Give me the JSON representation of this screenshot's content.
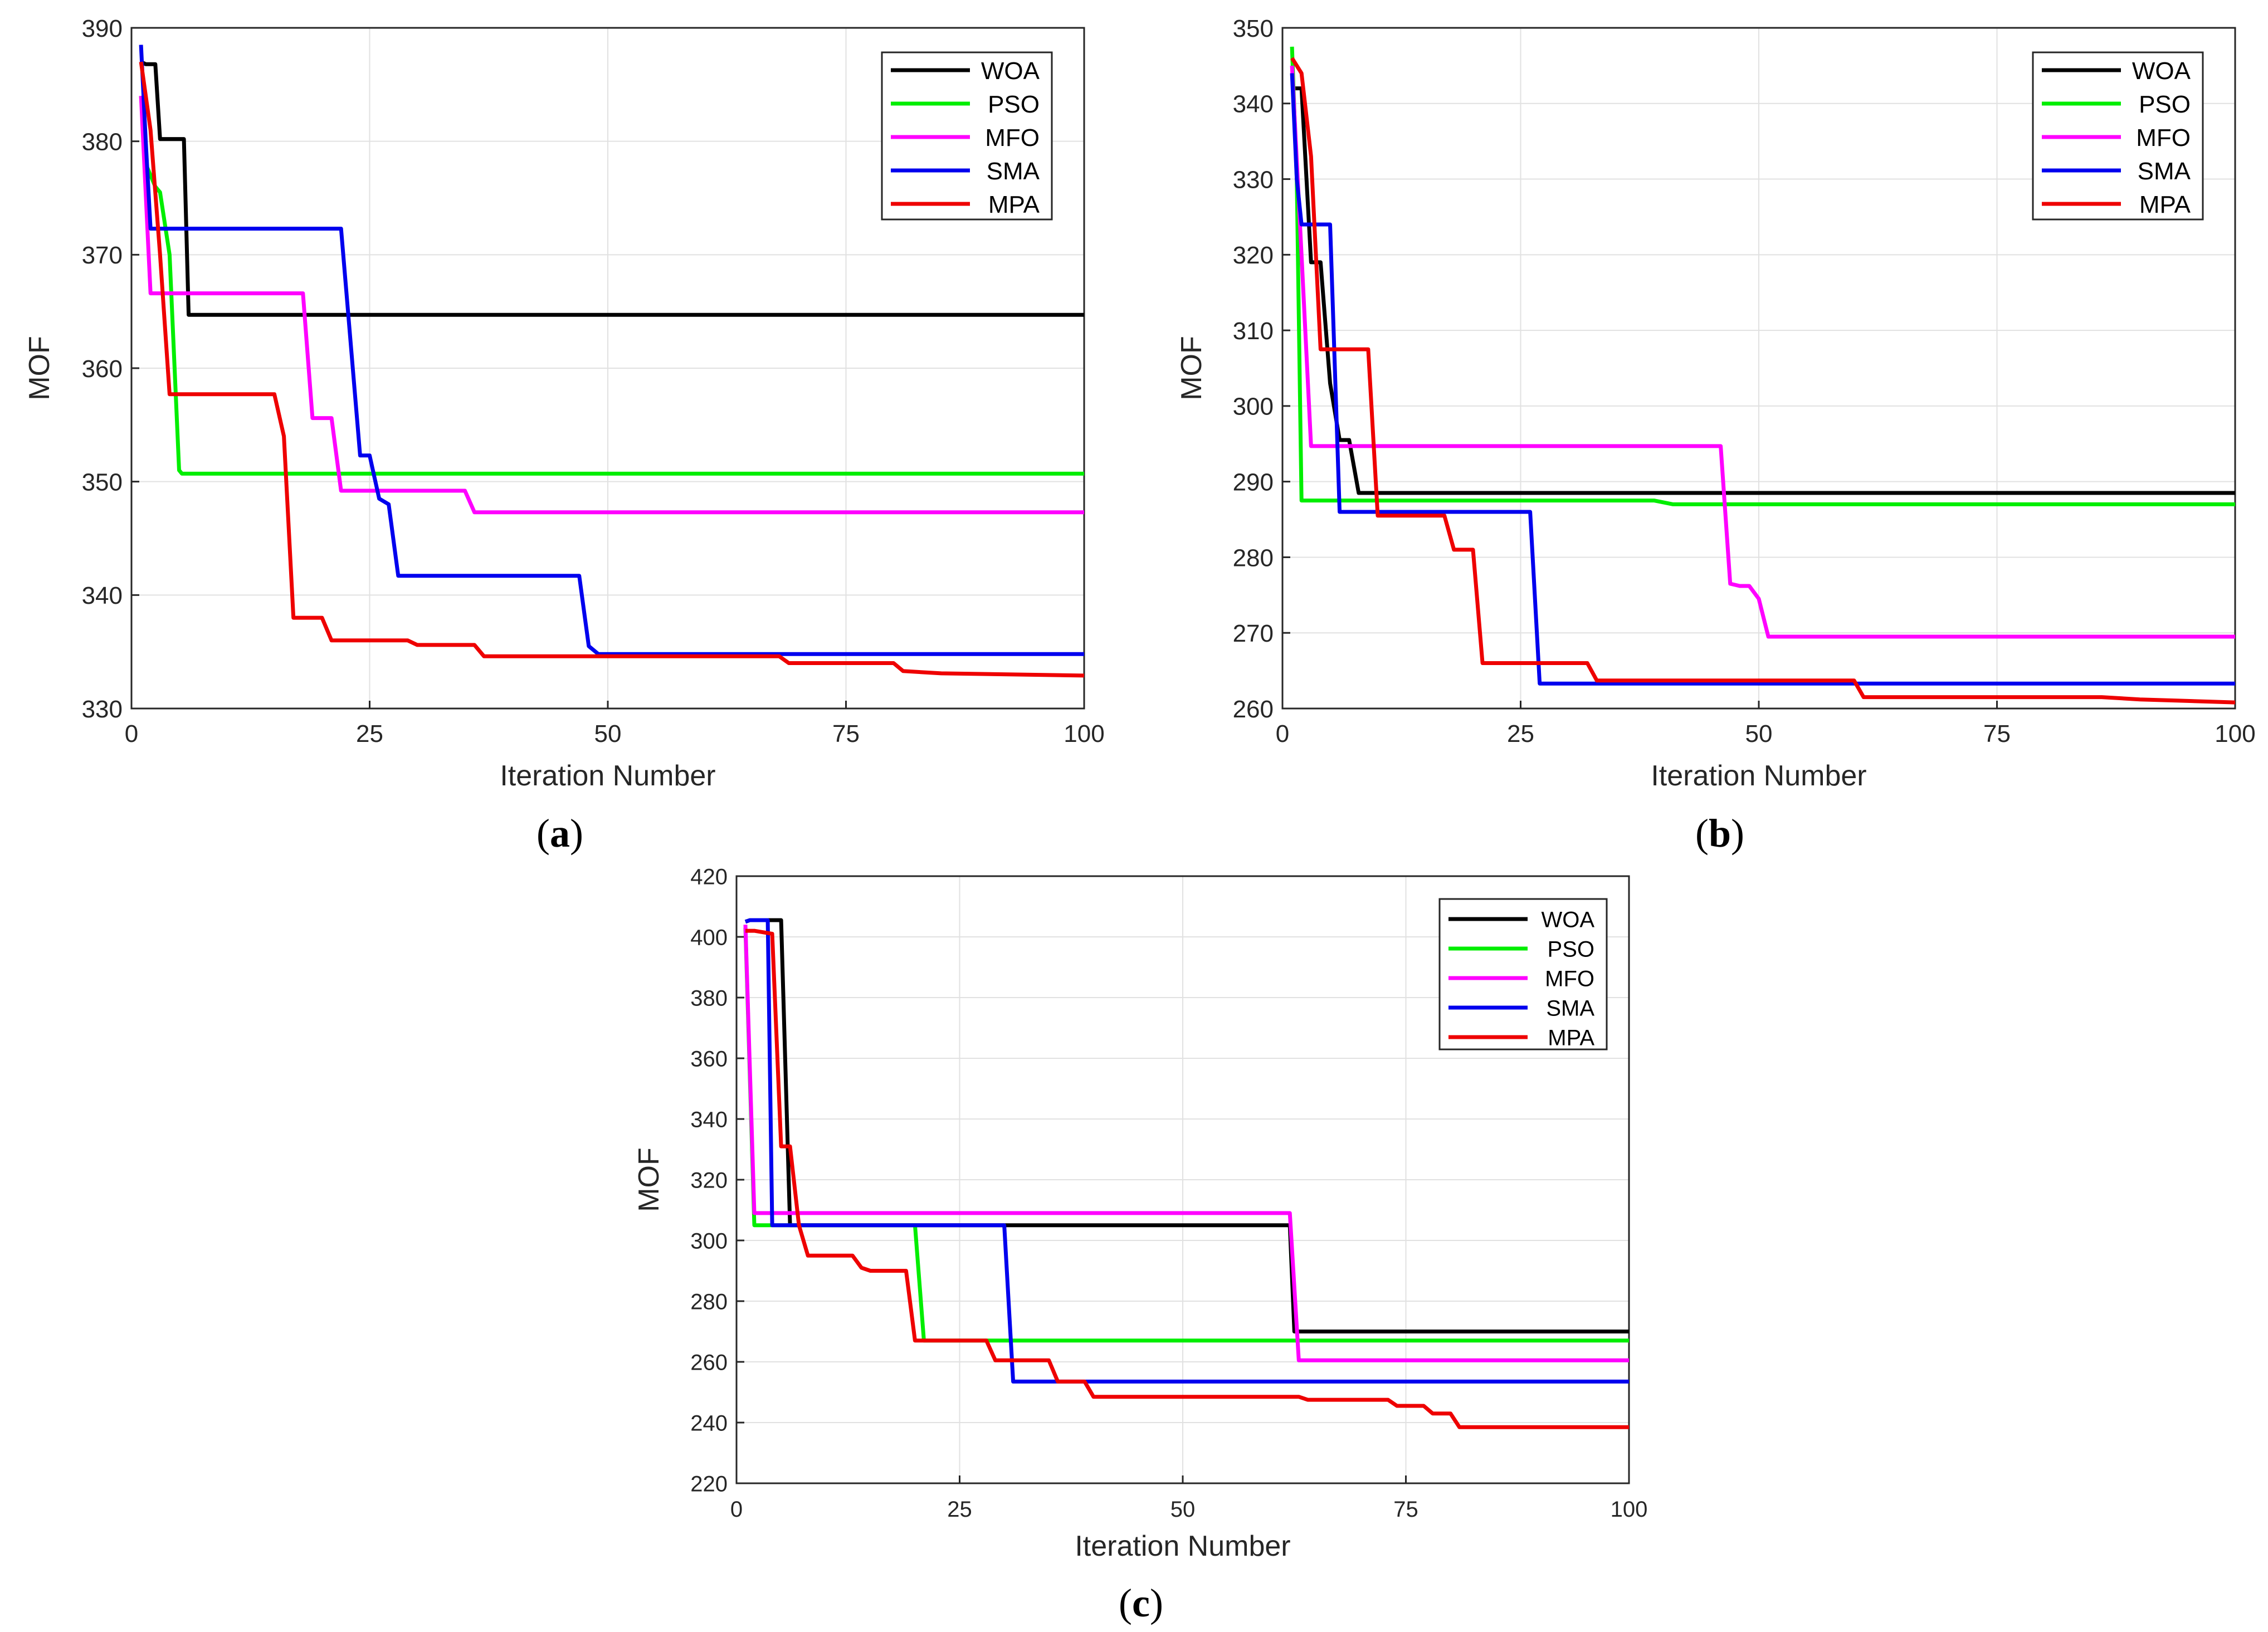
{
  "legend_order": [
    "WOA",
    "PSO",
    "MFO",
    "SMA",
    "MPA"
  ],
  "colors": {
    "WOA": "#000000",
    "PSO": "#00ee00",
    "MFO": "#ff00ff",
    "SMA": "#0000ee",
    "MPA": "#ee0000"
  },
  "chart_data": [
    {
      "type": "line",
      "panel": "a",
      "caption_letter": "a",
      "xlabel": "Iteration Number",
      "ylabel": "MOF",
      "xlim": [
        0,
        100
      ],
      "ylim": [
        330,
        390
      ],
      "xticks": [
        0,
        25,
        50,
        75,
        100
      ],
      "yticks": [
        330,
        340,
        350,
        360,
        370,
        380,
        390
      ],
      "grid": true,
      "legend_position": "top-right",
      "series": [
        {
          "name": "WOA",
          "x": [
            1,
            1.5,
            2.5,
            3,
            5,
            5.5,
            6,
            100
          ],
          "y": [
            387,
            386.8,
            386.8,
            380.2,
            380.2,
            380.2,
            364.7,
            364.7
          ]
        },
        {
          "name": "PSO",
          "x": [
            1,
            1.5,
            2.5,
            3,
            4,
            5,
            5.3,
            100
          ],
          "y": [
            384,
            378,
            376,
            375.5,
            370,
            351,
            350.7,
            350.7
          ]
        },
        {
          "name": "MFO",
          "x": [
            1,
            2,
            18,
            19,
            21,
            22,
            35,
            36,
            100
          ],
          "y": [
            384,
            366.6,
            366.6,
            355.6,
            355.6,
            349.2,
            349.2,
            347.3,
            347.3
          ]
        },
        {
          "name": "SMA",
          "x": [
            1,
            1.5,
            2,
            22,
            24,
            25,
            26,
            27,
            28,
            29,
            47,
            48,
            49,
            100
          ],
          "y": [
            388.5,
            380,
            372.3,
            372.3,
            352.3,
            352.3,
            348.5,
            348,
            341.7,
            341.7,
            341.7,
            335.5,
            334.8,
            334.8
          ]
        },
        {
          "name": "MPA",
          "x": [
            1,
            2,
            3,
            4,
            15,
            16,
            17,
            20,
            21,
            29,
            30,
            36,
            37,
            68,
            69,
            80,
            81,
            85,
            100
          ],
          "y": [
            387,
            381,
            370,
            357.7,
            357.7,
            354,
            338,
            338,
            336,
            336,
            335.6,
            335.6,
            334.6,
            334.6,
            334,
            334,
            333.3,
            333.1,
            332.9
          ]
        }
      ]
    },
    {
      "type": "line",
      "panel": "b",
      "caption_letter": "b",
      "xlabel": "Iteration Number",
      "ylabel": "MOF",
      "xlim": [
        0,
        100
      ],
      "ylim": [
        260,
        350
      ],
      "xticks": [
        0,
        25,
        50,
        75,
        100
      ],
      "yticks": [
        260,
        270,
        280,
        290,
        300,
        310,
        320,
        330,
        340,
        350
      ],
      "grid": true,
      "legend_position": "top-right",
      "series": [
        {
          "name": "WOA",
          "x": [
            1,
            1.5,
            2,
            3,
            4,
            5,
            6,
            7,
            8,
            9,
            100
          ],
          "y": [
            342,
            342,
            342,
            319,
            319,
            303,
            295.5,
            295.5,
            288.5,
            288.5,
            288.5
          ]
        },
        {
          "name": "PSO",
          "x": [
            1,
            1.5,
            2,
            39,
            41,
            100
          ],
          "y": [
            347.5,
            330,
            287.5,
            287.5,
            287,
            287
          ]
        },
        {
          "name": "MFO",
          "x": [
            1,
            2,
            3,
            46,
            47,
            48,
            49,
            50,
            51,
            100
          ],
          "y": [
            345,
            320,
            294.7,
            294.7,
            276.5,
            276.2,
            276.2,
            274.5,
            269.5,
            269.5
          ]
        },
        {
          "name": "SMA",
          "x": [
            1,
            1.5,
            2,
            5,
            6,
            26,
            27,
            100
          ],
          "y": [
            344,
            330,
            324,
            324,
            286,
            286,
            263.3,
            263.3
          ]
        },
        {
          "name": "MPA",
          "x": [
            1,
            2,
            3,
            4,
            9,
            10,
            17,
            18,
            20,
            21,
            32,
            33,
            60,
            61,
            86,
            90,
            95,
            100
          ],
          "y": [
            346,
            344,
            333,
            307.5,
            307.5,
            285.5,
            285.5,
            281,
            281,
            266,
            266,
            263.7,
            263.7,
            261.5,
            261.5,
            261.2,
            261,
            260.8
          ]
        }
      ]
    },
    {
      "type": "line",
      "panel": "c",
      "caption_letter": "c",
      "xlabel": "Iteration Number",
      "ylabel": "MOF",
      "xlim": [
        0,
        100
      ],
      "ylim": [
        220,
        420
      ],
      "xticks": [
        0,
        25,
        50,
        75,
        100
      ],
      "yticks": [
        220,
        240,
        260,
        280,
        300,
        320,
        340,
        360,
        380,
        400,
        420
      ],
      "grid": true,
      "legend_position": "top-right",
      "series": [
        {
          "name": "WOA",
          "x": [
            1,
            1.5,
            5,
            6,
            62,
            62.5,
            100
          ],
          "y": [
            405,
            405.5,
            405.5,
            305,
            305,
            270,
            270
          ]
        },
        {
          "name": "PSO",
          "x": [
            1,
            2,
            20,
            21,
            100
          ],
          "y": [
            403,
            305,
            305,
            267,
            267
          ]
        },
        {
          "name": "MFO",
          "x": [
            1,
            2,
            62,
            63,
            100
          ],
          "y": [
            404,
            309,
            309,
            260.5,
            260.5
          ]
        },
        {
          "name": "SMA",
          "x": [
            1,
            1.5,
            3.5,
            4,
            30,
            31,
            100
          ],
          "y": [
            405,
            405.5,
            405.5,
            305,
            305,
            253.5,
            253.5
          ]
        },
        {
          "name": "MPA",
          "x": [
            1,
            2,
            4,
            5,
            6,
            7,
            8,
            13,
            14,
            15,
            19,
            20,
            28,
            29,
            35,
            36,
            39,
            40,
            63,
            64,
            73,
            74,
            77,
            78,
            80,
            81,
            100
          ],
          "y": [
            402,
            402,
            401,
            331,
            331,
            305,
            295,
            295,
            291,
            290,
            290,
            267,
            267,
            260.5,
            260.5,
            253.5,
            253.5,
            248.5,
            248.5,
            247.5,
            247.5,
            245.5,
            245.5,
            243,
            243,
            238.5,
            238.5
          ]
        }
      ]
    }
  ]
}
